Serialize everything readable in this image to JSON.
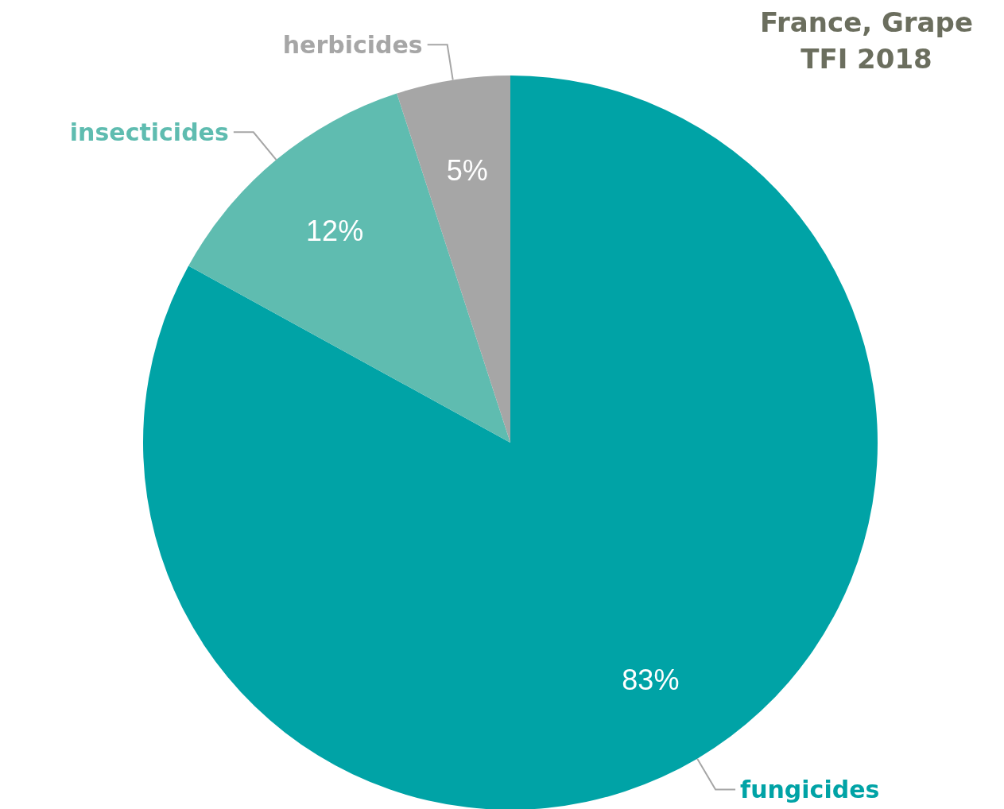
{
  "chart_data": {
    "type": "pie",
    "title": "France, Grape\nTFI 2018",
    "categories": [
      "fungicides",
      "insecticides",
      "herbicides"
    ],
    "values": [
      83,
      12,
      5
    ],
    "colors": [
      "#00a3a6",
      "#5fbcb0",
      "#a6a6a6"
    ],
    "value_labels": [
      "83%",
      "12%",
      "5%"
    ]
  }
}
